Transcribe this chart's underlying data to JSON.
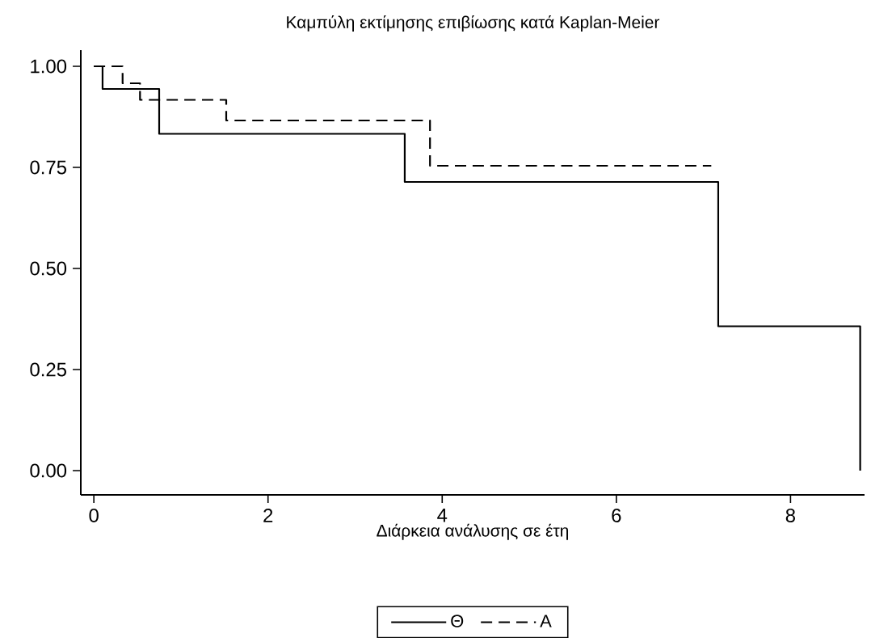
{
  "chart_data": {
    "type": "step",
    "title": "Καμπύλη εκτίμησης επιβίωσης κατά Kaplan-Meier",
    "xlabel": "Διάρκεια ανάλυσης σε έτη",
    "series": [
      {
        "name": "Θ",
        "color": "#000000",
        "line_style": "solid",
        "x": [
          0,
          0.1,
          0.75,
          3.57,
          7.17,
          8.8
        ],
        "values": [
          1.0,
          0.944,
          0.833,
          0.714,
          0.357,
          0.0
        ]
      },
      {
        "name": "A",
        "color": "#000000",
        "line_style": "dashed",
        "x": [
          0,
          0.33,
          0.53,
          1.52,
          3.86,
          7.09
        ],
        "values": [
          1.0,
          0.958,
          0.917,
          0.866,
          0.754,
          0.754
        ]
      }
    ],
    "xlim": [
      -0.15,
      8.85
    ],
    "ylim": [
      -0.06,
      1.04
    ],
    "xticks": [
      0,
      2,
      4,
      6,
      8
    ],
    "yticks": [
      {
        "value": 0,
        "label": "0.00"
      },
      {
        "value": 0.25,
        "label": "0.25"
      },
      {
        "value": 0.5,
        "label": "0.50"
      },
      {
        "value": 0.75,
        "label": "0.75"
      },
      {
        "value": 1,
        "label": "1.00"
      }
    ],
    "legend": "bottom"
  }
}
